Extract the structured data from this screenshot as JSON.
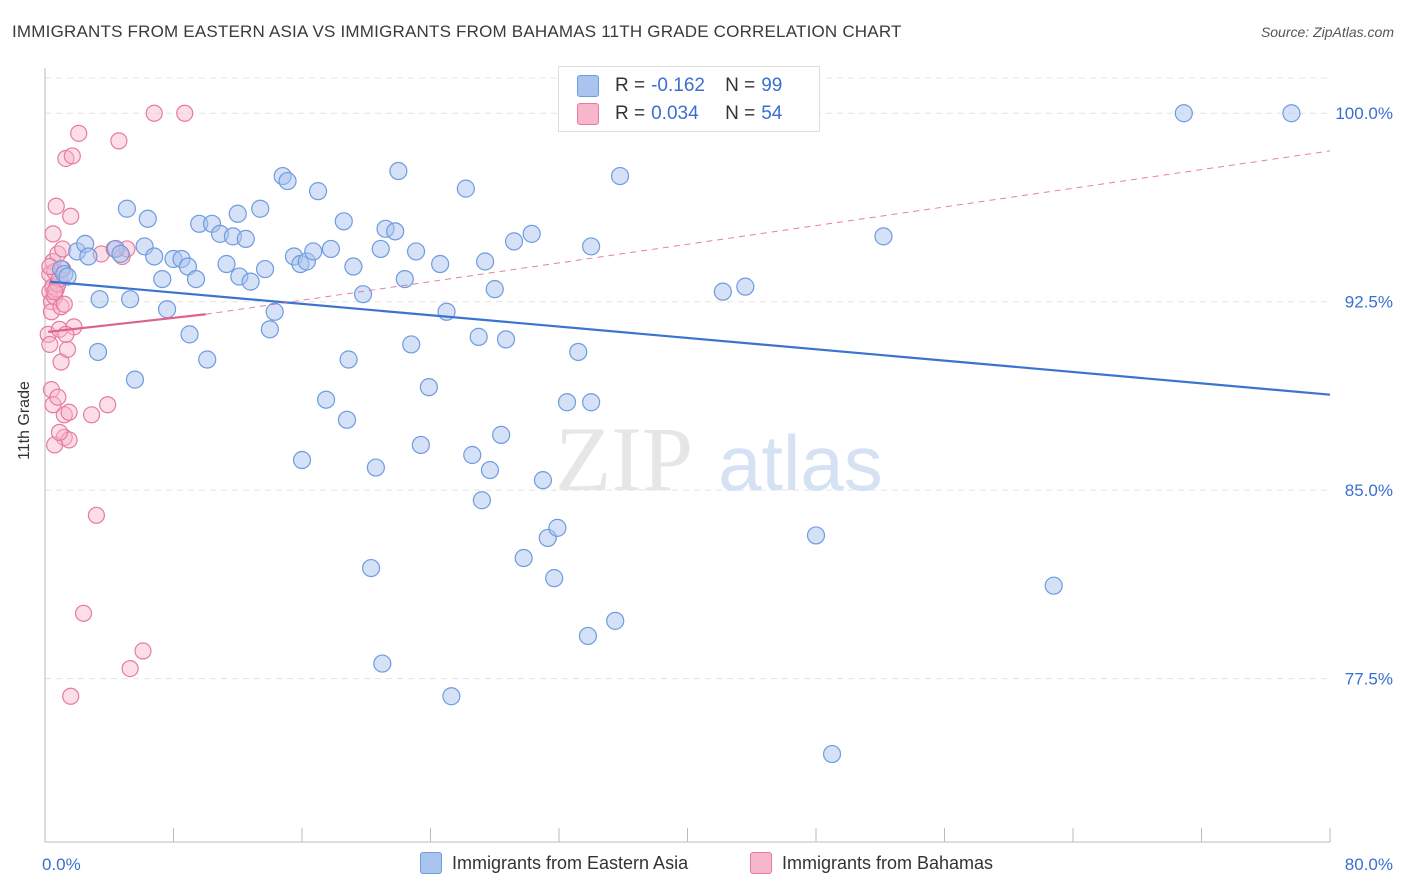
{
  "header": {
    "title": "IMMIGRANTS FROM EASTERN ASIA VS IMMIGRANTS FROM BAHAMAS 11TH GRADE CORRELATION CHART",
    "source": "Source: ZipAtlas.com"
  },
  "watermark": {
    "zip": "ZIP",
    "atlas": "atlas"
  },
  "colors": {
    "blue": "#6f9be0",
    "blue_fill": "#a9c4ee",
    "blue_line": "#3a74d0",
    "pink": "#e87aa0",
    "pink_fill": "#f6b6cb",
    "pink_line": "#e0608f",
    "axis_text": "#3a6fd0",
    "grid": "#e4e4e4"
  },
  "stats": {
    "r_label": "R =",
    "n_label": "N =",
    "blue": {
      "r": "-0.162",
      "n": "99"
    },
    "pink": {
      "r": "0.034",
      "n": "54"
    }
  },
  "chart_data": {
    "type": "scatter",
    "title": "IMMIGRANTS FROM EASTERN ASIA VS IMMIGRANTS FROM BAHAMAS 11TH GRADE CORRELATION CHART",
    "xlabel": "",
    "ylabel": "11th Grade",
    "xlim": [
      0,
      80
    ],
    "ylim": [
      71.0,
      101.8
    ],
    "x_tick_labels": [
      "0.0%",
      "80.0%"
    ],
    "y_ticks": [
      77.5,
      85.0,
      92.5,
      100.0
    ],
    "y_tick_labels": [
      "77.5%",
      "85.0%",
      "92.5%",
      "100.0%"
    ],
    "grid": true,
    "legend_position": "bottom",
    "series": [
      {
        "name": "Immigrants from Eastern Asia",
        "color": "#6f9be0",
        "trend": {
          "x0": 0.3,
          "y0": 93.3,
          "x1": 80,
          "y1": 88.8
        },
        "points": [
          [
            1.0,
            93.8
          ],
          [
            1.2,
            93.6
          ],
          [
            1.4,
            93.5
          ],
          [
            2.0,
            94.5
          ],
          [
            2.5,
            94.8
          ],
          [
            2.7,
            94.3
          ],
          [
            3.3,
            90.5
          ],
          [
            3.4,
            92.6
          ],
          [
            4.4,
            94.6
          ],
          [
            4.7,
            94.4
          ],
          [
            5.1,
            96.2
          ],
          [
            5.6,
            89.4
          ],
          [
            6.2,
            94.7
          ],
          [
            6.4,
            95.8
          ],
          [
            6.8,
            94.3
          ],
          [
            7.3,
            93.4
          ],
          [
            7.6,
            92.2
          ],
          [
            8.0,
            94.2
          ],
          [
            8.5,
            94.2
          ],
          [
            8.9,
            93.9
          ],
          [
            9.4,
            93.4
          ],
          [
            9.6,
            95.6
          ],
          [
            10.1,
            90.2
          ],
          [
            10.4,
            95.6
          ],
          [
            10.9,
            95.2
          ],
          [
            11.3,
            94.0
          ],
          [
            11.7,
            95.1
          ],
          [
            12.1,
            93.5
          ],
          [
            12.5,
            95.0
          ],
          [
            12.8,
            93.3
          ],
          [
            13.4,
            96.2
          ],
          [
            13.7,
            93.8
          ],
          [
            14.0,
            91.4
          ],
          [
            14.3,
            92.1
          ],
          [
            14.8,
            97.5
          ],
          [
            15.1,
            97.3
          ],
          [
            15.5,
            94.3
          ],
          [
            15.9,
            94.0
          ],
          [
            16.3,
            94.1
          ],
          [
            16.7,
            94.5
          ],
          [
            17.0,
            96.9
          ],
          [
            17.5,
            88.6
          ],
          [
            17.8,
            94.6
          ],
          [
            18.6,
            95.7
          ],
          [
            18.9,
            90.2
          ],
          [
            19.2,
            93.9
          ],
          [
            19.8,
            92.8
          ],
          [
            20.6,
            85.9
          ],
          [
            20.3,
            81.9
          ],
          [
            20.9,
            94.6
          ],
          [
            21.2,
            95.4
          ],
          [
            21.8,
            95.3
          ],
          [
            22.0,
            97.7
          ],
          [
            22.4,
            93.4
          ],
          [
            22.8,
            90.8
          ],
          [
            23.1,
            94.5
          ],
          [
            23.4,
            86.8
          ],
          [
            23.9,
            89.1
          ],
          [
            24.6,
            94.0
          ],
          [
            25.0,
            92.1
          ],
          [
            21.0,
            78.1
          ],
          [
            25.3,
            76.8
          ],
          [
            26.2,
            97.0
          ],
          [
            26.6,
            86.4
          ],
          [
            27.0,
            91.1
          ],
          [
            27.4,
            94.1
          ],
          [
            27.7,
            85.8
          ],
          [
            28.0,
            93.0
          ],
          [
            28.4,
            87.2
          ],
          [
            28.7,
            91.0
          ],
          [
            29.2,
            94.9
          ],
          [
            29.8,
            82.3
          ],
          [
            30.3,
            95.2
          ],
          [
            31.0,
            85.4
          ],
          [
            31.3,
            83.1
          ],
          [
            31.7,
            81.5
          ],
          [
            31.9,
            83.5
          ],
          [
            32.5,
            88.5
          ],
          [
            33.2,
            90.5
          ],
          [
            33.8,
            79.2
          ],
          [
            34.0,
            94.7
          ],
          [
            35.5,
            79.8
          ],
          [
            35.8,
            97.5
          ],
          [
            37.2,
            100.0
          ],
          [
            42.2,
            92.9
          ],
          [
            43.6,
            93.1
          ],
          [
            48.0,
            83.2
          ],
          [
            52.2,
            95.1
          ],
          [
            62.8,
            81.2
          ],
          [
            70.9,
            100.0
          ],
          [
            77.6,
            100.0
          ],
          [
            49.0,
            74.5
          ],
          [
            18.8,
            87.8
          ],
          [
            27.2,
            84.6
          ],
          [
            5.3,
            92.6
          ],
          [
            16.0,
            86.2
          ],
          [
            9.0,
            91.2
          ],
          [
            34.0,
            88.5
          ],
          [
            12.0,
            96.0
          ]
        ]
      },
      {
        "name": "Immigrants from Bahamas",
        "color": "#e87aa0",
        "trend": {
          "x0": 0.2,
          "y0": 91.3,
          "x1": 10.0,
          "y1": 92.0,
          "dash_x1": 80,
          "dash_y1": 98.5
        },
        "points": [
          [
            0.2,
            91.2
          ],
          [
            0.3,
            92.9
          ],
          [
            0.3,
            93.6
          ],
          [
            0.4,
            92.5
          ],
          [
            0.4,
            92.1
          ],
          [
            0.5,
            93.1
          ],
          [
            0.5,
            94.1
          ],
          [
            0.6,
            93.7
          ],
          [
            0.6,
            92.7
          ],
          [
            0.7,
            93.0
          ],
          [
            0.7,
            96.3
          ],
          [
            0.8,
            94.4
          ],
          [
            0.8,
            93.2
          ],
          [
            0.9,
            93.4
          ],
          [
            0.9,
            91.4
          ],
          [
            1.0,
            90.1
          ],
          [
            1.0,
            92.3
          ],
          [
            1.1,
            94.6
          ],
          [
            1.1,
            93.8
          ],
          [
            1.2,
            88.0
          ],
          [
            1.2,
            87.1
          ],
          [
            1.3,
            98.2
          ],
          [
            1.4,
            90.6
          ],
          [
            1.5,
            88.1
          ],
          [
            1.5,
            87.0
          ],
          [
            1.6,
            95.9
          ],
          [
            1.7,
            98.3
          ],
          [
            1.8,
            91.5
          ],
          [
            2.1,
            99.2
          ],
          [
            2.4,
            80.1
          ],
          [
            2.9,
            88.0
          ],
          [
            3.2,
            84.0
          ],
          [
            3.5,
            94.4
          ],
          [
            3.9,
            88.4
          ],
          [
            4.3,
            94.6
          ],
          [
            4.6,
            98.9
          ],
          [
            4.8,
            94.3
          ],
          [
            5.1,
            94.6
          ],
          [
            5.3,
            77.9
          ],
          [
            6.1,
            78.6
          ],
          [
            6.8,
            100.0
          ],
          [
            8.7,
            100.0
          ],
          [
            0.3,
            90.8
          ],
          [
            0.4,
            89.0
          ],
          [
            0.5,
            88.4
          ],
          [
            0.6,
            86.8
          ],
          [
            0.8,
            88.7
          ],
          [
            1.2,
            92.4
          ],
          [
            1.6,
            76.8
          ],
          [
            0.9,
            87.3
          ],
          [
            0.5,
            95.2
          ],
          [
            0.3,
            93.9
          ],
          [
            1.3,
            91.2
          ],
          [
            0.6,
            92.9
          ]
        ]
      }
    ]
  },
  "legend": {
    "items": [
      {
        "label": "Immigrants from Eastern Asia"
      },
      {
        "label": "Immigrants from Bahamas"
      }
    ]
  }
}
